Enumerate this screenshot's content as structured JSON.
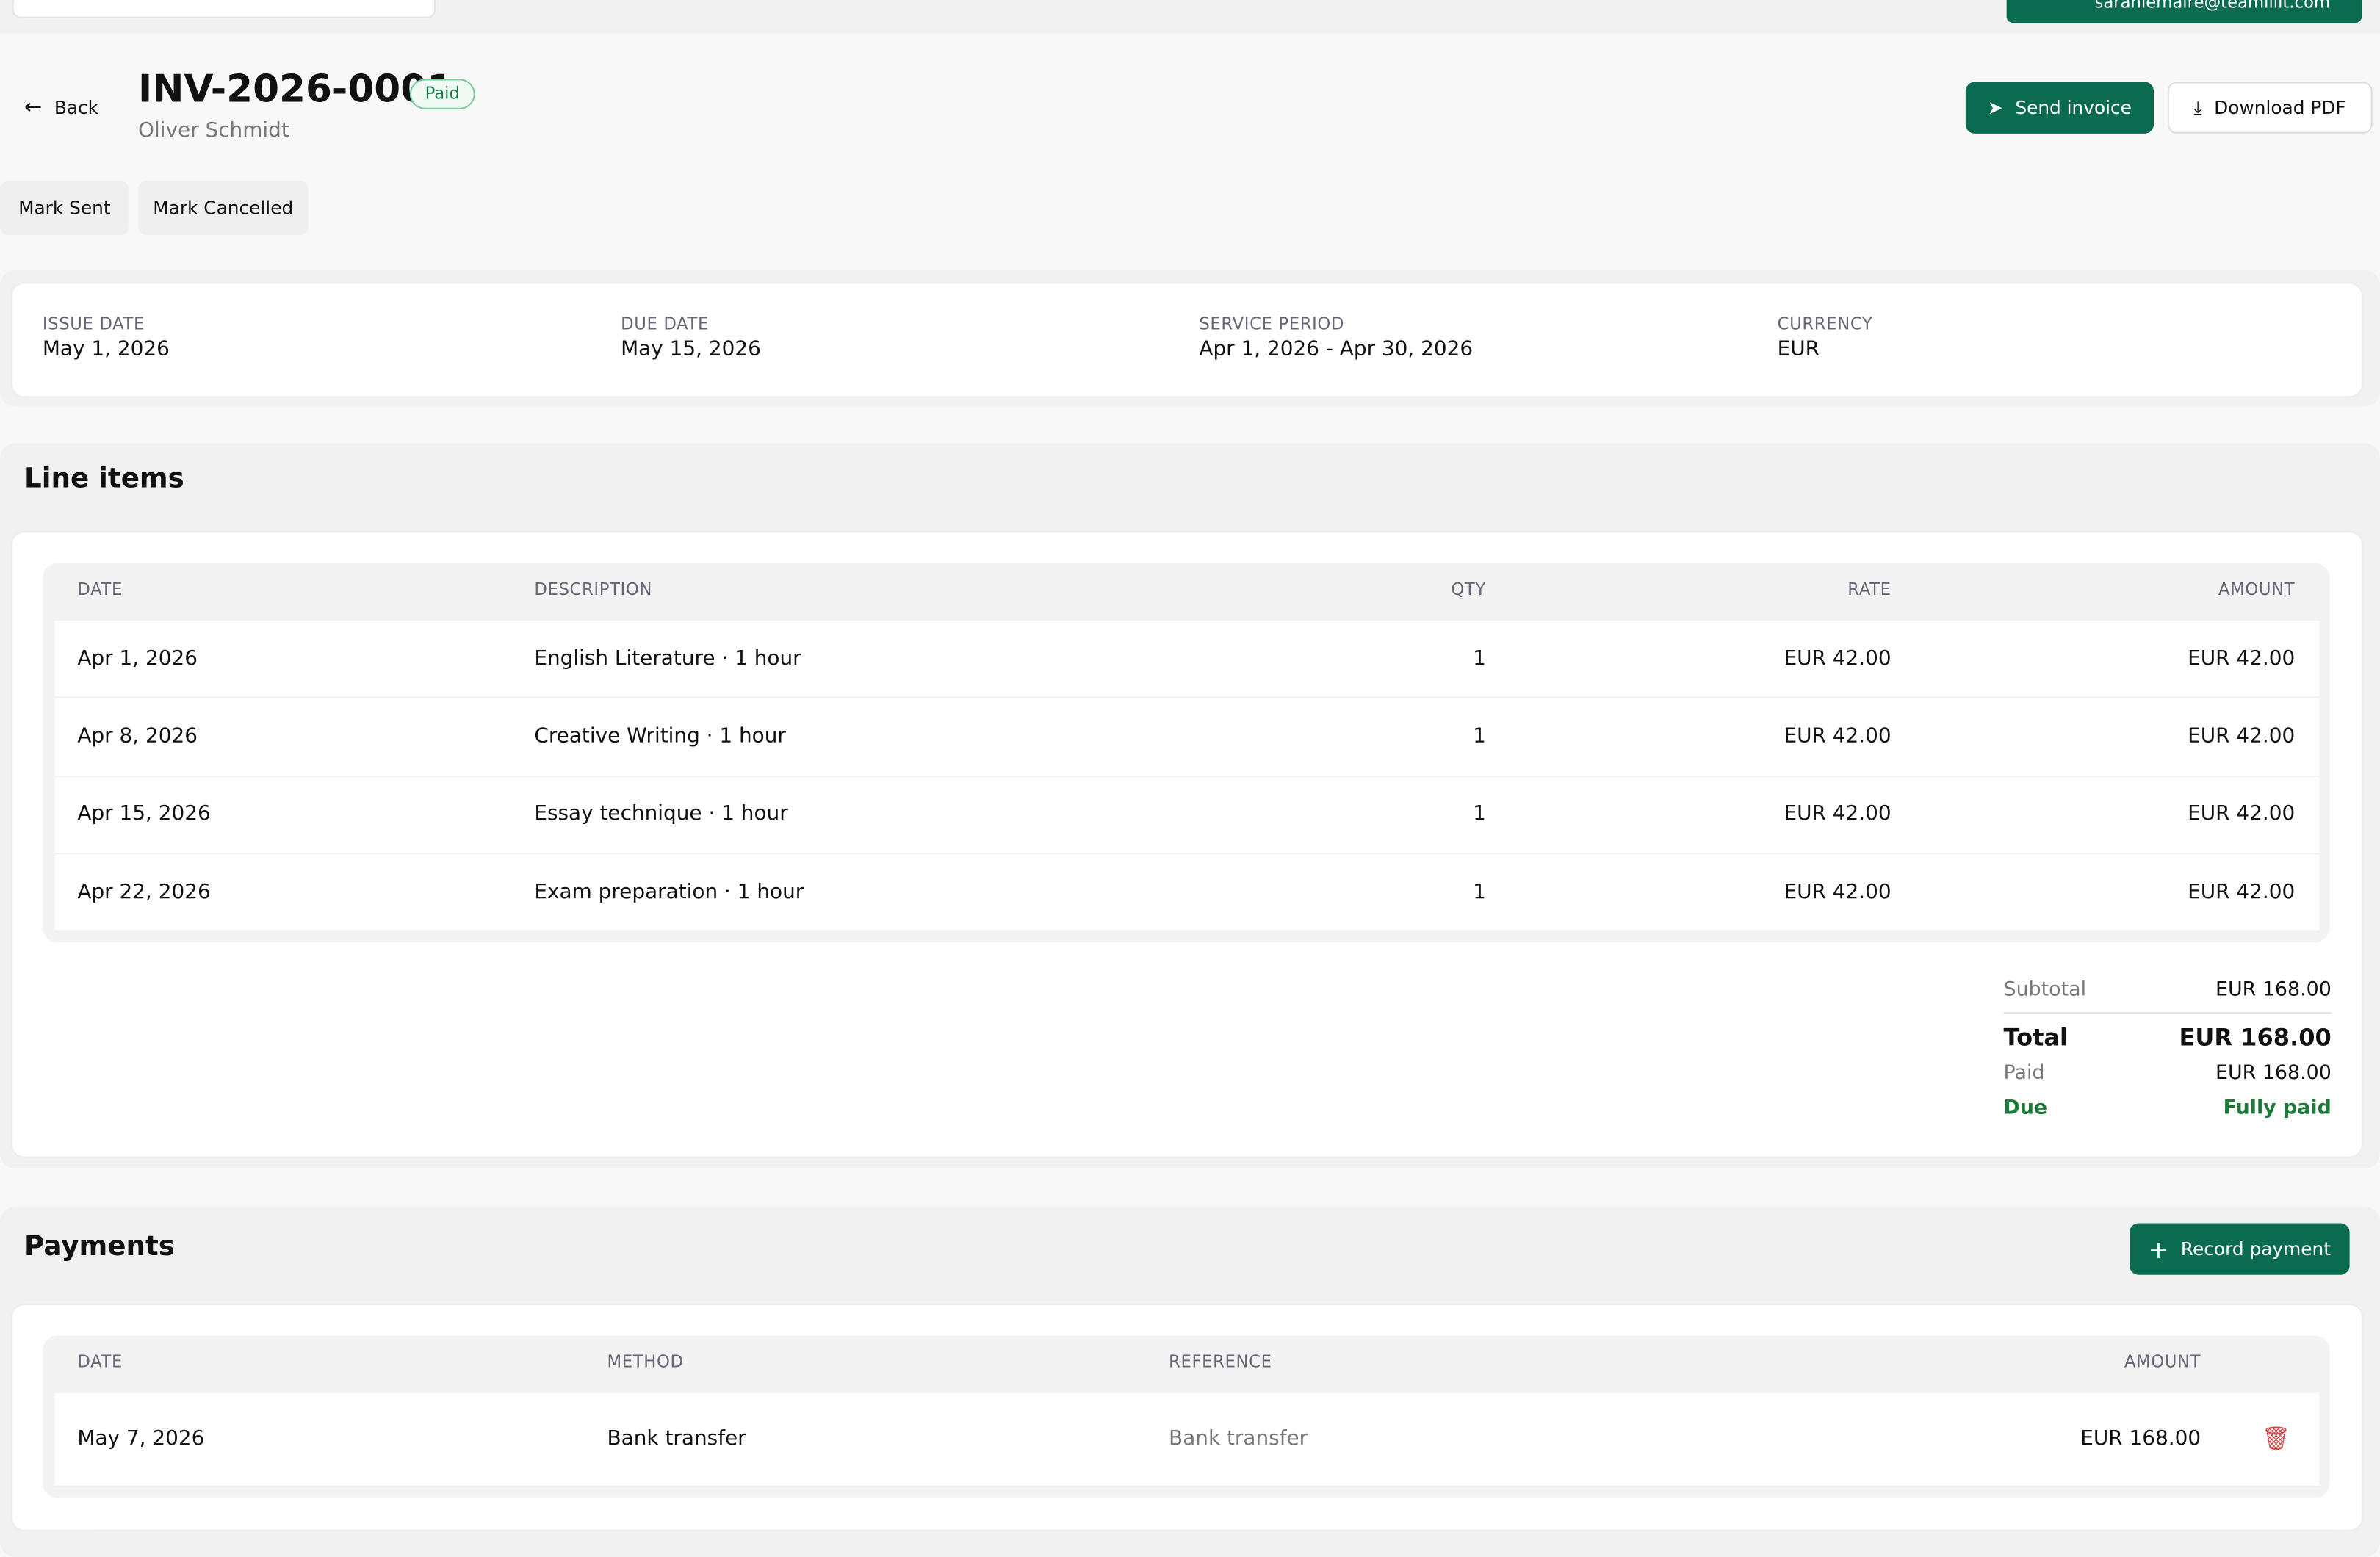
{
  "top": {
    "user_email": "sarahlemaire@teamlilit.com"
  },
  "header": {
    "back": "Back",
    "title": "INV-2026-0001",
    "status": "Paid",
    "client": "Oliver Schmidt",
    "send": "Send invoice",
    "download": "Download PDF",
    "mark_sent": "Mark Sent",
    "mark_cancelled": "Mark Cancelled"
  },
  "info": [
    {
      "label": "ISSUE DATE",
      "value": "May 1, 2026"
    },
    {
      "label": "DUE DATE",
      "value": "May 15, 2026"
    },
    {
      "label": "SERVICE PERIOD",
      "value": "Apr 1, 2026 - Apr 30, 2026"
    },
    {
      "label": "CURRENCY",
      "value": "EUR"
    }
  ],
  "line_items": {
    "title": "Line items",
    "columns": [
      "DATE",
      "DESCRIPTION",
      "QTY",
      "RATE",
      "AMOUNT"
    ],
    "rows": [
      [
        "Apr 1, 2026",
        "English Literature · 1 hour",
        "1",
        "EUR 42.00",
        "EUR 42.00"
      ],
      [
        "Apr 8, 2026",
        "Creative Writing · 1 hour",
        "1",
        "EUR 42.00",
        "EUR 42.00"
      ],
      [
        "Apr 15, 2026",
        "Essay technique · 1 hour",
        "1",
        "EUR 42.00",
        "EUR 42.00"
      ],
      [
        "Apr 22, 2026",
        "Exam preparation · 1 hour",
        "1",
        "EUR 42.00",
        "EUR 42.00"
      ]
    ]
  },
  "totals": {
    "subtotal_label": "Subtotal",
    "subtotal": "EUR 168.00",
    "total_label": "Total",
    "total": "EUR 168.00",
    "paid_label": "Paid",
    "paid": "EUR 168.00",
    "due_label": "Due",
    "due": "Fully paid"
  },
  "payments": {
    "title": "Payments",
    "record": "Record payment",
    "columns": [
      "DATE",
      "METHOD",
      "REFERENCE",
      "AMOUNT"
    ],
    "rows": [
      [
        "May 7, 2026",
        "Bank transfer",
        "Bank transfer",
        "EUR 168.00"
      ]
    ]
  }
}
